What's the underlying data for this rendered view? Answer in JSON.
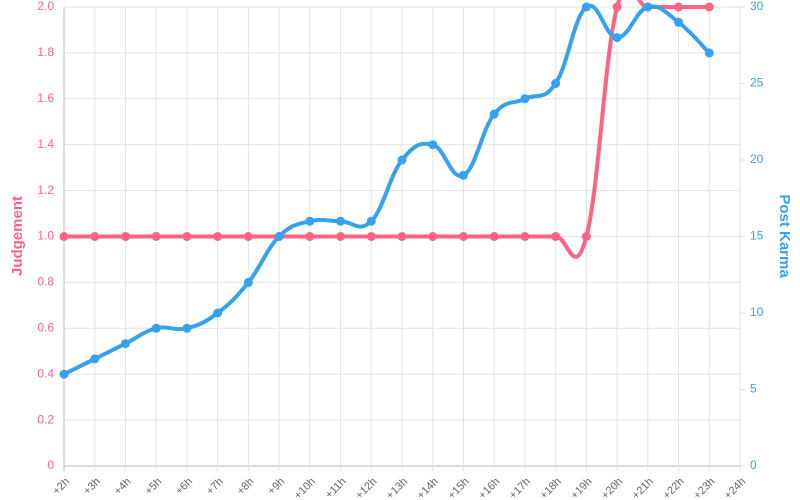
{
  "chart_data": {
    "type": "line",
    "categories": [
      "+2h",
      "+3h",
      "+4h",
      "+5h",
      "+6h",
      "+7h",
      "+8h",
      "+9h",
      "+10h",
      "+11h",
      "+12h",
      "+13h",
      "+14h",
      "+15h",
      "+16h",
      "+17h",
      "+18h",
      "+19h",
      "+20h",
      "+21h",
      "+22h",
      "+23h",
      "+24h"
    ],
    "series": [
      {
        "name": "Judgement",
        "color": "#ff6384",
        "axis": "y",
        "values": [
          1,
          1,
          1,
          1,
          1,
          1,
          1,
          1,
          1,
          1,
          1,
          1,
          1,
          1,
          1,
          1,
          1,
          1,
          2,
          2,
          2,
          2,
          null
        ]
      },
      {
        "name": "Post Karma",
        "color": "#36a2eb",
        "axis": "y2",
        "values": [
          6,
          7,
          8,
          9,
          9,
          10,
          12,
          15,
          16,
          16,
          16,
          20,
          21,
          19,
          23,
          24,
          25,
          30,
          28,
          30,
          29,
          27,
          null
        ]
      }
    ],
    "ylabel": "Judgement",
    "y2label": "Post Karma",
    "ylim": [
      0,
      2
    ],
    "yticks": [
      0,
      0.2,
      0.4,
      0.6,
      0.8,
      {
        "value": 1,
        "label": "1.0"
      },
      1.2,
      1.4,
      1.6,
      1.8,
      {
        "value": 2,
        "label": "2.0"
      }
    ],
    "y2lim": [
      0,
      30
    ],
    "y2ticks": [
      0,
      5,
      10,
      15,
      20,
      25,
      30
    ],
    "grid": true
  }
}
